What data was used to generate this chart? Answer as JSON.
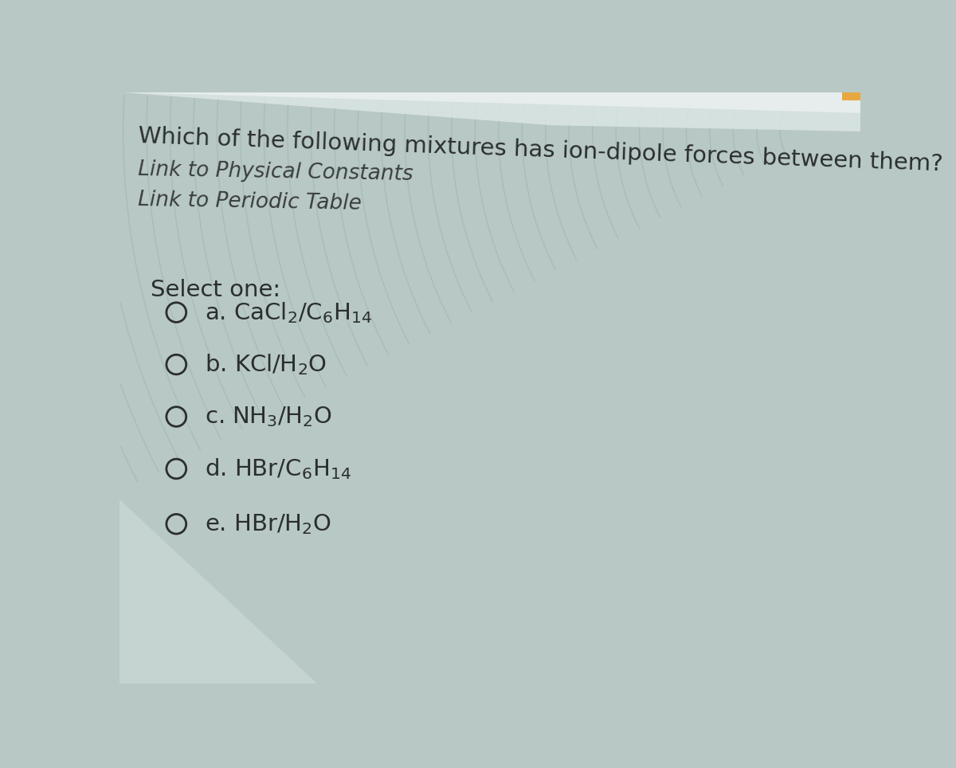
{
  "title": "Which of the following mixtures has ion-dipole forces between them?",
  "link1": "Link to Physical Constants",
  "link2": "Link to Periodic Table",
  "select_label": "Select one:",
  "options": [
    {
      "letter": "a",
      "formula": "CaCl$_2$/C$_6$H$_{14}$"
    },
    {
      "letter": "b",
      "formula": "KCl/H$_2$O"
    },
    {
      "letter": "c",
      "formula": "NH$_3$/H$_2$O"
    },
    {
      "letter": "d",
      "formula": "HBr/C$_6$H$_{14}$"
    },
    {
      "letter": "e",
      "formula": "HBr/H$_2$O"
    }
  ],
  "bg_color": "#b8c8c4",
  "text_color": "#2a2e2e",
  "link_color": "#3a3e3e",
  "wave_color_dark": "#8fa8a4",
  "wave_color_light": "#c8d8d4",
  "left_panel_color": "#d0dedd",
  "top_bar_color": "#dde8e6",
  "top_bar2_color": "#e8efee",
  "orange_corner": "#e8a840"
}
